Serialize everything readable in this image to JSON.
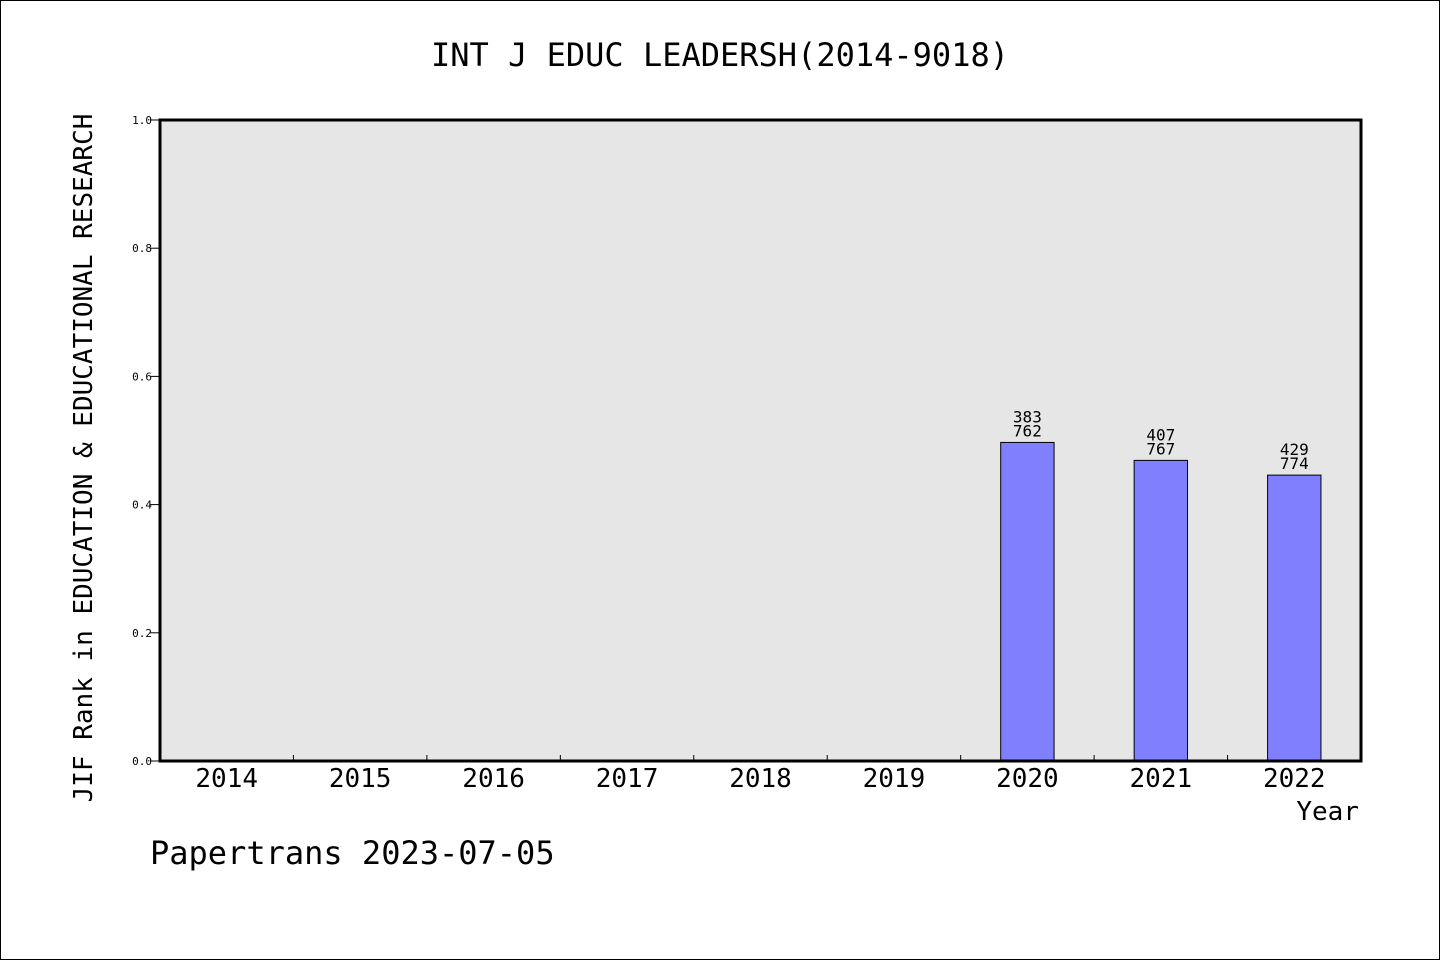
{
  "chart_data": {
    "type": "bar",
    "title": "INT J EDUC LEADERSH(2014-9018)",
    "xlabel": "Year",
    "ylabel": "JIF Rank in EDUCATION & EDUCATIONAL RESEARCH",
    "categories": [
      "2014",
      "2015",
      "2016",
      "2017",
      "2018",
      "2019",
      "2020",
      "2021",
      "2022"
    ],
    "values": [
      null,
      null,
      null,
      null,
      null,
      null,
      0.503,
      0.531,
      0.554
    ],
    "bar_labels": [
      null,
      null,
      null,
      null,
      null,
      null,
      {
        "rank": "383",
        "total": "762"
      },
      {
        "rank": "407",
        "total": "767"
      },
      {
        "rank": "429",
        "total": "774"
      }
    ],
    "yticks": [
      "0.0",
      "0.2",
      "0.4",
      "0.6",
      "0.8",
      "1.0"
    ],
    "ylim": [
      0,
      1
    ],
    "inverted_y": true,
    "grid": false,
    "colors": {
      "bar": "#8080ff",
      "plot_bg": "#e6e6e6"
    }
  },
  "footer": "Papertrans 2023-07-05"
}
